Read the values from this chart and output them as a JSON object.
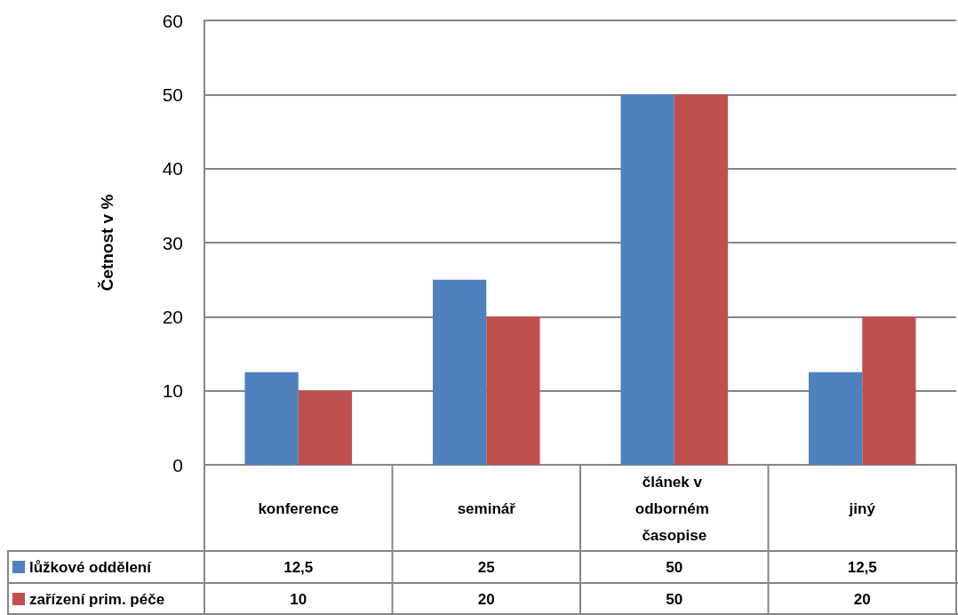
{
  "chart_data": {
    "type": "bar",
    "ylabel": "Četnost v %",
    "categories": [
      "konference",
      "seminář",
      "článek v odborném časopise",
      "jiný"
    ],
    "series": [
      {
        "name": "lůžkové oddělení",
        "color": "#4f81bd",
        "values": [
          12.5,
          25,
          50,
          12.5
        ],
        "value_labels": [
          "12,5",
          "25",
          "50",
          "12,5"
        ]
      },
      {
        "name": "zařízení prim. péče",
        "color": "#c0504d",
        "values": [
          10,
          20,
          50,
          20
        ],
        "value_labels": [
          "10",
          "20",
          "50",
          "20"
        ]
      }
    ],
    "ylim": [
      0,
      60
    ],
    "yticks": [
      0,
      10,
      20,
      30,
      40,
      50,
      60
    ],
    "grid": "y",
    "legend": "bottom"
  }
}
